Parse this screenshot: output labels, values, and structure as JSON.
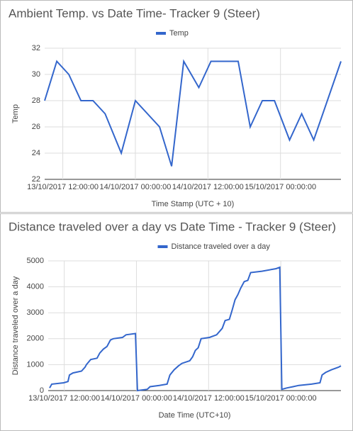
{
  "chart_data": [
    {
      "type": "line",
      "title": "Ambient Temp. vs Date Time- Tracker 9 (Steer)",
      "x_label": "Time Stamp (UTC + 10)",
      "y_label": "Temp",
      "legend": "top",
      "grid": true,
      "x": [
        "13/10/2017 09:00:00",
        "13/10/2017 11:00:00",
        "13/10/2017 13:00:00",
        "13/10/2017 15:00:00",
        "13/10/2017 17:00:00",
        "13/10/2017 19:00:00",
        "13/10/2017 21:40:00",
        "14/10/2017 00:00:00",
        "14/10/2017 04:00:00",
        "14/10/2017 06:00:00",
        "14/10/2017 08:00:00",
        "14/10/2017 10:30:00",
        "14/10/2017 12:30:00",
        "14/10/2017 17:00:00",
        "14/10/2017 19:00:00",
        "14/10/2017 21:00:00",
        "14/10/2017 23:00:00",
        "15/10/2017 01:30:00",
        "15/10/2017 03:30:00",
        "15/10/2017 05:30:00",
        "15/10/2017 10:00:00"
      ],
      "series": [
        {
          "name": "Temp",
          "color": "#3366cc",
          "values": [
            28,
            31,
            30,
            28,
            28,
            27,
            24,
            28,
            26,
            23,
            31,
            29,
            31,
            31,
            26,
            28,
            28,
            25,
            27,
            25,
            31
          ]
        }
      ],
      "xlim": [
        "13/10/2017 09:00:00",
        "15/10/2017 10:00:00"
      ],
      "xticks": [
        "13/10/2017 12:00:00",
        "14/10/2017 00:00:00",
        "14/10/2017 12:00:00",
        "15/10/2017 00:00:00"
      ],
      "ylim": [
        22,
        32
      ],
      "yticks": [
        22,
        24,
        26,
        28,
        30,
        32
      ]
    },
    {
      "type": "line",
      "title": "Distance traveled over a day vs Date Time - Tracker 9 (Steer)",
      "x_label": "Date Time (UTC+10)",
      "y_label": "Distance traveled over a day",
      "legend": "top",
      "grid": true,
      "x": [
        "13/10/2017 09:34:00",
        "13/10/2017 09:55:00",
        "13/10/2017 11:55:00",
        "13/10/2017 12:37:00",
        "13/10/2017 12:52:00",
        "13/10/2017 13:27:00",
        "13/10/2017 14:52:00",
        "13/10/2017 15:27:00",
        "13/10/2017 15:41:00",
        "13/10/2017 16:24:00",
        "13/10/2017 17:27:00",
        "13/10/2017 17:55:00",
        "13/10/2017 18:31:00",
        "13/10/2017 19:06:00",
        "13/10/2017 19:41:00",
        "13/10/2017 20:09:00",
        "13/10/2017 21:41:00",
        "13/10/2017 22:16:00",
        "13/10/2017 23:50:00",
        "14/10/2017 00:10:00",
        "14/10/2017 01:48:00",
        "14/10/2017 02:16:00",
        "14/10/2017 03:48:00",
        "14/10/2017 05:06:00",
        "14/10/2017 05:34:00",
        "14/10/2017 06:16:00",
        "14/10/2017 06:59:00",
        "14/10/2017 07:34:00",
        "14/10/2017 08:52:00",
        "14/10/2017 09:20:00",
        "14/10/2017 09:48:00",
        "14/10/2017 10:16:00",
        "14/10/2017 10:45:00",
        "14/10/2017 12:09:00",
        "14/10/2017 13:20:00",
        "14/10/2017 14:16:00",
        "14/10/2017 14:45:00",
        "14/10/2017 15:27:00",
        "14/10/2017 15:55:00",
        "14/10/2017 16:24:00",
        "14/10/2017 16:52:00",
        "14/10/2017 17:20:00",
        "14/10/2017 17:55:00",
        "14/10/2017 18:31:00",
        "14/10/2017 18:59:00",
        "14/10/2017 20:52:00",
        "14/10/2017 23:13:00",
        "14/10/2017 23:50:00",
        "15/10/2017 00:10:00",
        "15/10/2017 00:59:00",
        "15/10/2017 02:02:00",
        "15/10/2017 02:59:00",
        "15/10/2017 05:06:00",
        "15/10/2017 06:31:00",
        "15/10/2017 06:52:00",
        "15/10/2017 07:27:00",
        "15/10/2017 08:24:00",
        "15/10/2017 09:34:00",
        "15/10/2017 10:00:00"
      ],
      "series": [
        {
          "name": "Distance traveled over a day",
          "color": "#3366cc",
          "values": [
            100,
            250,
            300,
            350,
            600,
            680,
            750,
            900,
            1000,
            1200,
            1250,
            1450,
            1600,
            1700,
            1950,
            2000,
            2050,
            2150,
            2200,
            0,
            50,
            150,
            200,
            250,
            600,
            800,
            950,
            1050,
            1150,
            1300,
            1550,
            1650,
            2000,
            2050,
            2150,
            2400,
            2700,
            2750,
            3100,
            3500,
            3700,
            3950,
            4200,
            4250,
            4550,
            4600,
            4700,
            4750,
            50,
            100,
            150,
            200,
            250,
            300,
            600,
            700,
            800,
            900,
            950
          ]
        }
      ],
      "xlim": [
        "13/10/2017 09:20:00",
        "15/10/2017 10:00:00"
      ],
      "xticks": [
        "13/10/2017 12:00:00",
        "14/10/2017 00:00:00",
        "14/10/2017 12:00:00",
        "15/10/2017 00:00:00"
      ],
      "ylim": [
        0,
        5000
      ],
      "yticks": [
        0,
        1000,
        2000,
        3000,
        4000,
        5000
      ]
    }
  ]
}
